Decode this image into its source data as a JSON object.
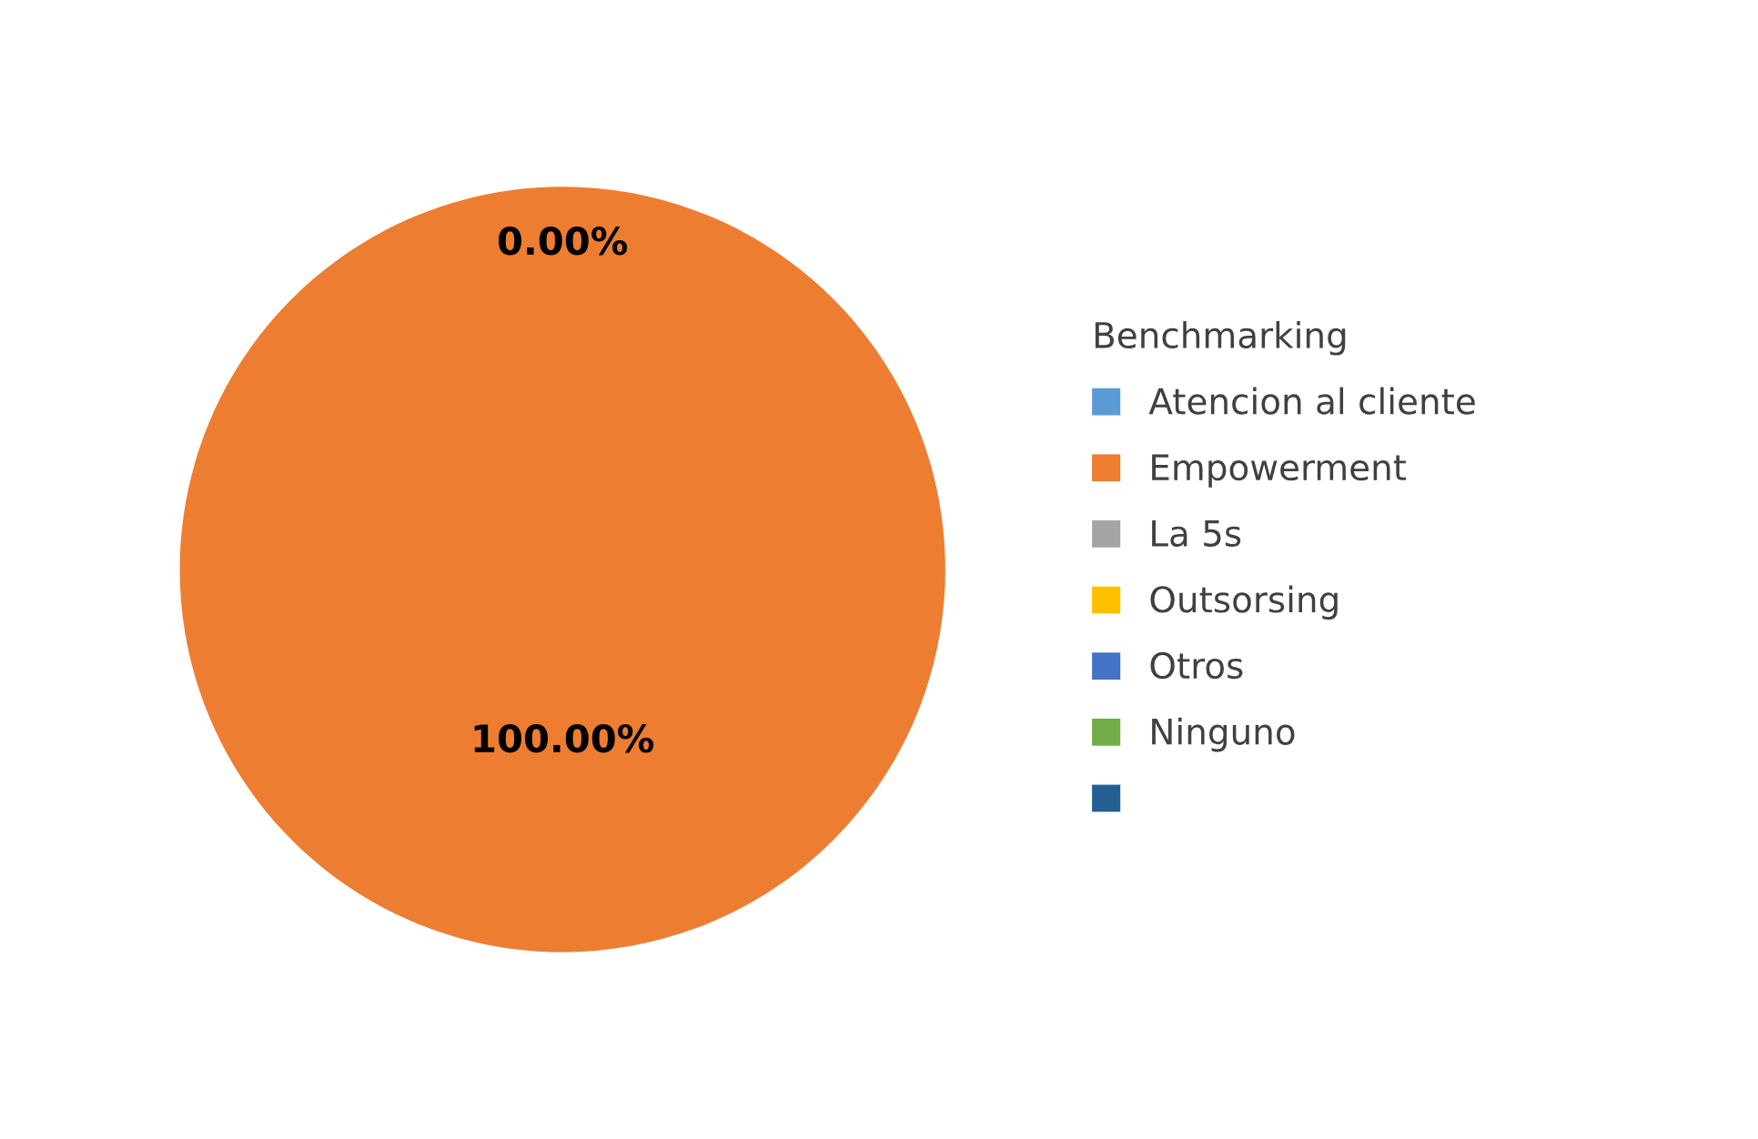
{
  "chart_data": {
    "type": "pie",
    "legend_title": "Benchmarking",
    "categories": [
      "Atencion al cliente",
      "Empowerment",
      "La 5s",
      "Outsorsing",
      "Otros",
      "Ninguno",
      null
    ],
    "values": [
      0,
      100,
      0,
      0,
      0,
      0,
      0
    ],
    "colors": [
      "#5b9bd5",
      "#ed7d31",
      "#a5a5a5",
      "#ffc000",
      "#4472c4",
      "#70ad47",
      "#255e91"
    ],
    "value_labels": [
      "0.00%",
      "100.00%",
      null,
      null,
      null,
      null,
      null
    ],
    "legend": "right"
  }
}
